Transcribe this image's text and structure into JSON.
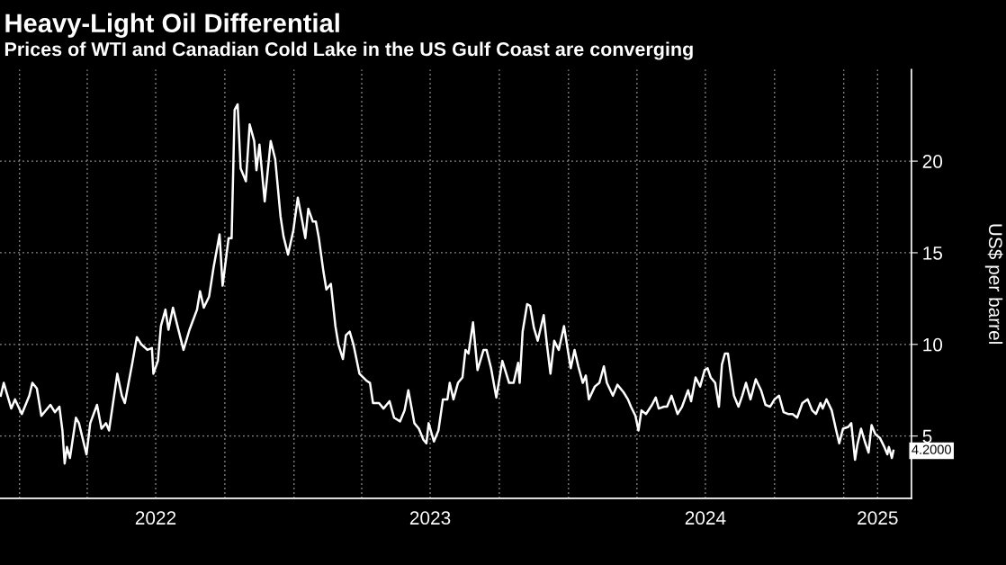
{
  "chart_data": {
    "type": "line",
    "title": "Heavy-Light Oil Differential",
    "subtitle": "Prices of WTI and Canadian Cold Lake in the US Gulf Coast are converging",
    "ylabel": "US$ per barrel",
    "x": [
      "2021-12-07",
      "2021-12-11",
      "2021-12-21",
      "2021-12-26",
      "2022-01-04",
      "2022-01-14",
      "2022-01-18",
      "2022-01-24",
      "2022-01-30",
      "2022-02-11",
      "2022-02-17",
      "2022-02-23",
      "2022-02-27",
      "2022-03-02",
      "2022-03-05",
      "2022-03-09",
      "2022-03-17",
      "2022-03-21",
      "2022-03-31",
      "2022-04-05",
      "2022-04-14",
      "2022-04-20",
      "2022-04-26",
      "2022-04-30",
      "2022-05-11",
      "2022-05-17",
      "2022-05-21",
      "2022-05-31",
      "2022-06-06",
      "2022-06-12",
      "2022-06-20",
      "2022-06-26",
      "2022-06-28",
      "2022-07-04",
      "2022-07-08",
      "2022-07-14",
      "2022-07-18",
      "2022-07-24",
      "2022-07-30",
      "2022-08-07",
      "2022-08-15",
      "2022-08-25",
      "2022-08-29",
      "2022-09-03",
      "2022-09-10",
      "2022-09-16",
      "2022-09-24",
      "2022-09-28",
      "2022-10-06",
      "2022-10-10",
      "2022-10-14",
      "2022-10-18",
      "2022-10-22",
      "2022-10-29",
      "2022-11-03",
      "2022-11-09",
      "2022-11-12",
      "2022-11-16",
      "2022-11-23",
      "2022-12-01",
      "2022-12-07",
      "2022-12-14",
      "2022-12-18",
      "2022-12-24",
      "2022-12-31",
      "2023-01-06",
      "2023-01-12",
      "2023-01-16",
      "2023-01-20",
      "2023-01-26",
      "2023-01-30",
      "2023-02-03",
      "2023-02-09",
      "2023-02-13",
      "2023-02-19",
      "2023-02-25",
      "2023-03-01",
      "2023-03-07",
      "2023-03-11",
      "2023-03-16",
      "2023-03-21",
      "2023-03-29",
      "2023-04-08",
      "2023-04-12",
      "2023-04-16",
      "2023-04-24",
      "2023-04-30",
      "2023-05-04",
      "2023-05-08",
      "2023-05-14",
      "2023-05-22",
      "2023-05-28",
      "2023-06-02",
      "2023-06-06",
      "2023-06-10",
      "2023-06-16",
      "2023-06-22",
      "2023-06-26",
      "2023-06-29",
      "2023-07-06",
      "2023-07-12",
      "2023-07-18",
      "2023-07-24",
      "2023-07-27",
      "2023-08-01",
      "2023-08-07",
      "2023-08-13",
      "2023-08-17",
      "2023-08-21",
      "2023-08-27",
      "2023-09-02",
      "2023-09-10",
      "2023-09-14",
      "2023-09-20",
      "2023-09-27",
      "2023-10-05",
      "2023-10-14",
      "2023-10-20",
      "2023-10-26",
      "2023-10-28",
      "2023-11-01",
      "2023-11-07",
      "2023-11-11",
      "2023-11-16",
      "2023-11-21",
      "2023-11-29",
      "2023-12-03",
      "2023-12-08",
      "2023-12-13",
      "2023-12-19",
      "2023-12-26",
      "2023-12-31",
      "2024-01-04",
      "2024-01-09",
      "2024-01-14",
      "2024-01-20",
      "2024-01-24",
      "2024-01-28",
      "2024-02-05",
      "2024-02-11",
      "2024-02-17",
      "2024-02-21",
      "2024-02-29",
      "2024-03-06",
      "2024-03-14",
      "2024-03-20",
      "2024-03-24",
      "2024-03-30",
      "2024-04-03",
      "2024-04-07",
      "2024-04-13",
      "2024-04-21",
      "2024-04-26",
      "2024-04-30",
      "2024-05-07",
      "2024-05-11",
      "2024-05-17",
      "2024-05-25",
      "2024-05-31",
      "2024-06-08",
      "2024-06-12",
      "2024-06-18",
      "2024-06-24",
      "2024-06-30",
      "2024-07-04",
      "2024-07-08",
      "2024-07-14",
      "2024-07-19",
      "2024-07-23",
      "2024-07-27",
      "2024-07-31",
      "2024-08-03",
      "2024-08-08",
      "2024-08-14",
      "2024-08-19",
      "2024-08-24",
      "2024-08-30",
      "2024-09-06",
      "2024-09-13",
      "2024-09-19",
      "2024-09-25",
      "2024-10-01",
      "2024-10-07",
      "2024-10-13",
      "2024-10-19",
      "2024-10-25",
      "2024-10-31",
      "2024-11-07",
      "2024-11-14",
      "2024-11-20",
      "2024-11-25",
      "2024-12-01",
      "2024-12-04",
      "2024-12-09",
      "2024-12-16",
      "2024-12-22",
      "2024-12-26",
      "2024-12-31",
      "2025-01-07",
      "2025-01-11",
      "2025-01-16",
      "2025-01-19",
      "2025-01-24",
      "2025-01-29",
      "2025-02-03",
      "2025-02-07",
      "2025-02-12",
      "2025-02-18",
      "2025-02-24",
      "2025-02-28",
      "2025-03-02",
      "2025-03-06",
      "2025-03-08"
    ],
    "series": [
      {
        "color": "#ffffff",
        "values": [
          7.2,
          7.9,
          6.5,
          7.0,
          6.2,
          7.2,
          7.9,
          7.6,
          6.1,
          6.7,
          6.3,
          6.6,
          5.3,
          3.5,
          4.4,
          3.8,
          6.0,
          5.7,
          4.0,
          5.7,
          6.7,
          5.4,
          5.7,
          5.3,
          8.4,
          7.2,
          6.8,
          9.0,
          10.4,
          10.0,
          9.7,
          9.8,
          8.4,
          9.1,
          11.0,
          11.9,
          10.8,
          12.0,
          11.0,
          9.7,
          10.8,
          11.9,
          12.9,
          12.0,
          12.6,
          14.2,
          16.0,
          13.2,
          15.8,
          15.8,
          22.8,
          23.1,
          19.6,
          18.9,
          22.0,
          21.1,
          19.5,
          20.9,
          17.8,
          21.1,
          20.1,
          17.0,
          15.9,
          14.9,
          16.2,
          18.0,
          16.7,
          15.8,
          17.4,
          16.7,
          16.7,
          15.8,
          14.0,
          13.0,
          13.3,
          11.0,
          10.0,
          9.2,
          10.5,
          10.7,
          10.0,
          8.4,
          8.0,
          7.9,
          6.8,
          6.8,
          6.5,
          6.7,
          6.9,
          6.0,
          5.8,
          6.4,
          7.5,
          6.6,
          5.7,
          5.4,
          4.8,
          4.6,
          5.7,
          4.7,
          5.3,
          7.0,
          7.0,
          7.9,
          7.0,
          7.9,
          8.2,
          9.7,
          9.5,
          11.2,
          8.6,
          9.7,
          9.7,
          8.7,
          7.1,
          9.1,
          7.9,
          7.9,
          9.0,
          7.9,
          10.7,
          12.2,
          12.1,
          10.9,
          10.2,
          11.6,
          10.1,
          8.4,
          10.2,
          9.7,
          11.0,
          9.7,
          8.7,
          9.7,
          8.8,
          7.9,
          8.3,
          7.0,
          7.7,
          7.9,
          8.8,
          7.9,
          7.2,
          7.8,
          7.4,
          7.0,
          6.6,
          6.1,
          5.3,
          6.4,
          6.2,
          6.7,
          7.1,
          6.5,
          6.6,
          6.6,
          7.2,
          6.2,
          6.6,
          7.5,
          6.9,
          8.2,
          7.7,
          8.6,
          8.7,
          8.2,
          7.9,
          6.6,
          8.9,
          9.5,
          9.5,
          8.6,
          7.2,
          6.6,
          7.2,
          7.9,
          7.0,
          8.1,
          7.5,
          6.7,
          6.6,
          7.0,
          7.2,
          6.3,
          6.2,
          6.2,
          6.0,
          6.8,
          7.0,
          6.4,
          6.2,
          6.8,
          6.5,
          7.0,
          6.4,
          5.3,
          4.6,
          5.4,
          5.5,
          5.7,
          3.7,
          4.5,
          5.4,
          4.7,
          4.1,
          5.6,
          5.1,
          4.9,
          4.4,
          4.0,
          4.4,
          3.8,
          4.2
        ]
      }
    ],
    "xlim": [
      "2021-12-06",
      "2025-04-01"
    ],
    "xticks": [
      {
        "value": "2022-01-01",
        "label": null
      },
      {
        "value": "2022-04-01",
        "label": null
      },
      {
        "value": "2022-07-01",
        "label": "2022"
      },
      {
        "value": "2022-10-01",
        "label": null
      },
      {
        "value": "2023-01-01",
        "label": null
      },
      {
        "value": "2023-04-01",
        "label": null
      },
      {
        "value": "2023-07-01",
        "label": "2023"
      },
      {
        "value": "2023-10-01",
        "label": null
      },
      {
        "value": "2024-01-01",
        "label": null
      },
      {
        "value": "2024-04-01",
        "label": null
      },
      {
        "value": "2024-07-01",
        "label": "2024"
      },
      {
        "value": "2024-10-01",
        "label": null
      },
      {
        "value": "2025-01-01",
        "label": null
      },
      {
        "value": "2025-02-15",
        "label": "2025"
      }
    ],
    "ylim": [
      1.6,
      25
    ],
    "yticks": [
      5,
      10,
      15,
      20
    ],
    "grid": true,
    "line_style": "solid",
    "annotations": [
      {
        "text": "4.2000",
        "x": "2025-03-08",
        "y": 4.2
      }
    ]
  }
}
